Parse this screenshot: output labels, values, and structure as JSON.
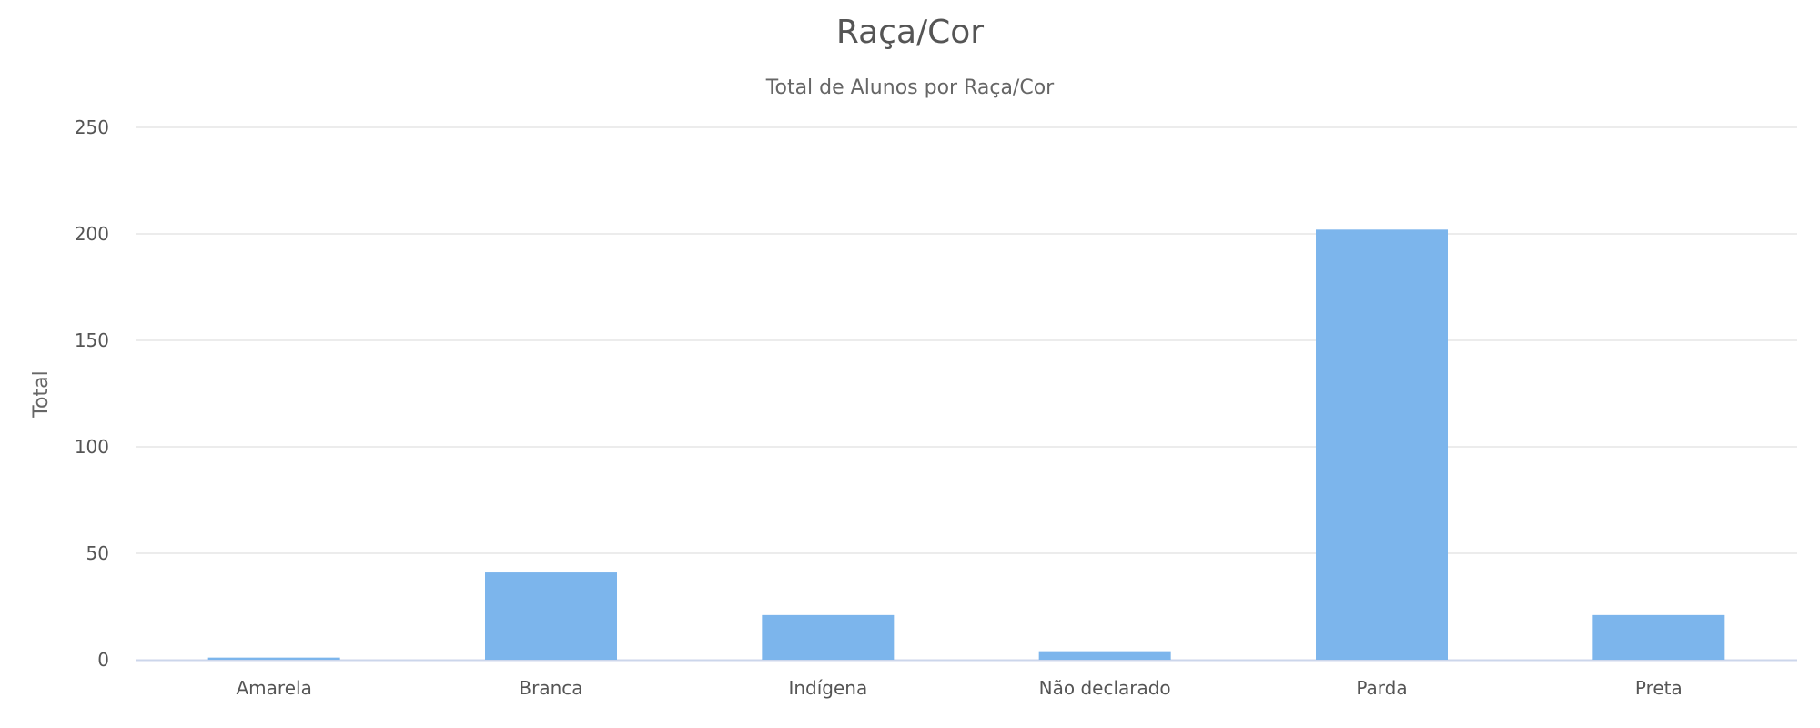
{
  "chart_data": {
    "type": "bar",
    "title": "Raça/Cor",
    "subtitle": "Total de Alunos por Raça/Cor",
    "xlabel": "",
    "ylabel": "Total",
    "categories": [
      "Amarela",
      "Branca",
      "Indígena",
      "Não declarado",
      "Parda",
      "Preta"
    ],
    "values": [
      1,
      41,
      21,
      4,
      202,
      21
    ],
    "ylim": [
      0,
      250
    ],
    "yticks": [
      0,
      50,
      100,
      150,
      200,
      250
    ],
    "grid": true,
    "legend": "none",
    "colors": {
      "bar": "#7cb5ec",
      "grid": "#e6e6e6",
      "axis": "#ccd6eb"
    }
  }
}
